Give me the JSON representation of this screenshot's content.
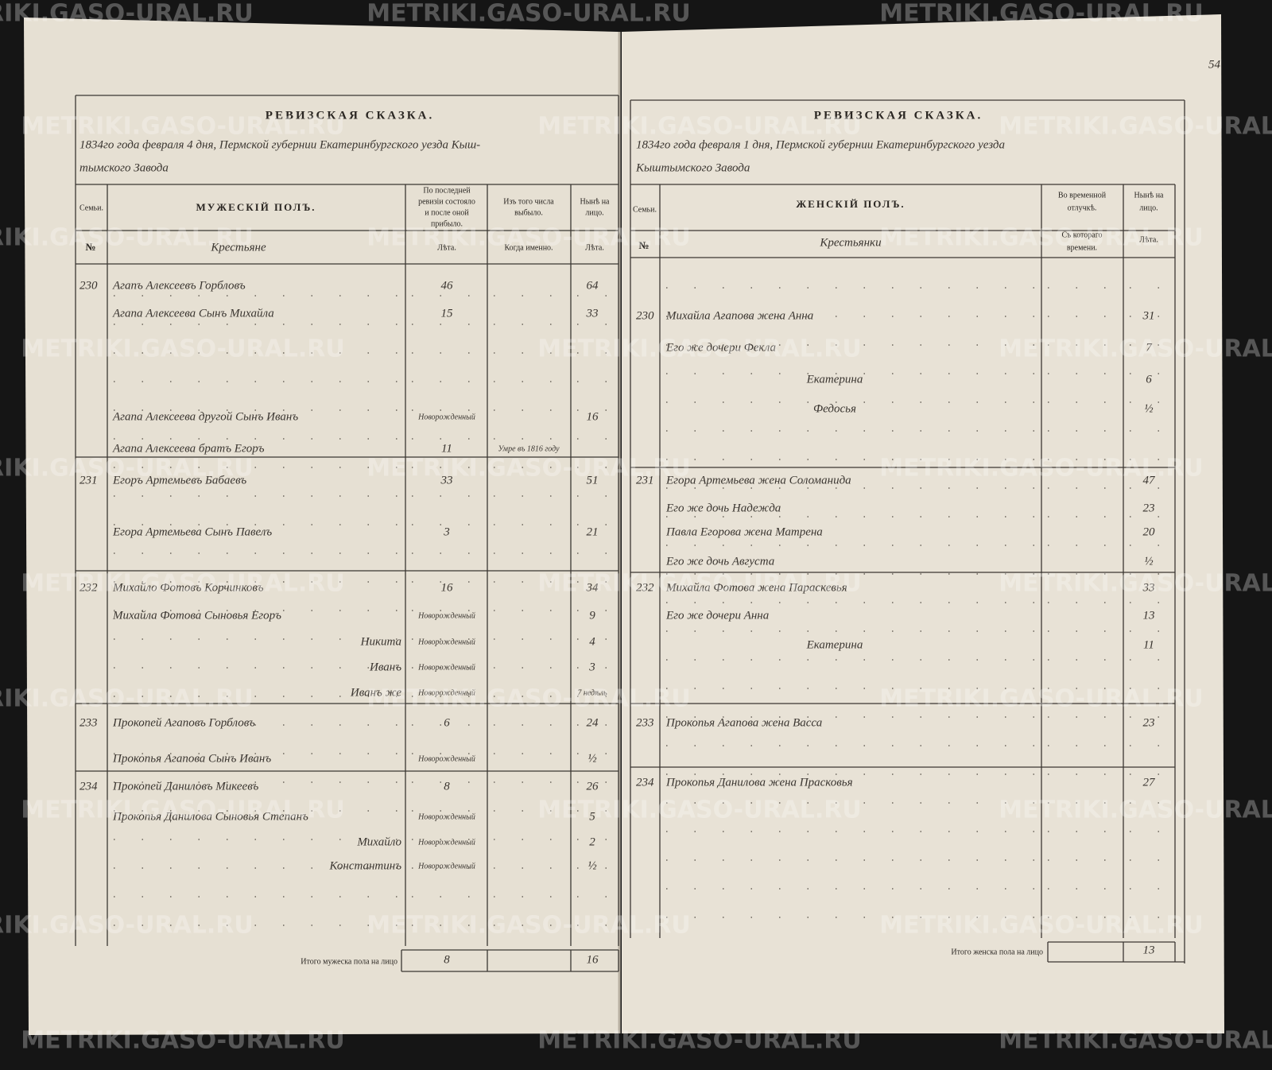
{
  "watermark": "METRIKI.GASO-URAL.RU",
  "page_number": "54",
  "left_page": {
    "title": "РЕВИЗСКАЯ СКАЗКА.",
    "header_lines": [
      "1834го года февраля 4 дня, Пермской губернии Екатеринбургского уезда Кыш-",
      "тымского Завода"
    ],
    "columns": {
      "family": [
        "Семьи."
      ],
      "name": [
        "МУЖЕСКІЙ ПОЛЪ."
      ],
      "previous": [
        "По последней",
        "ревизіи состояло",
        "и после оной",
        "прибыло."
      ],
      "departed": [
        "Изъ того числа",
        "выбыло."
      ],
      "present": [
        "Нынѣ на",
        "лицо."
      ]
    },
    "subheaders": {
      "number": [
        "№"
      ],
      "estate": [
        "Крестьяне"
      ],
      "previous": [
        "Лѣта."
      ],
      "departed": [
        "Когда именно."
      ],
      "present": [
        "Лѣта."
      ]
    },
    "rows": [
      {
        "family": "230",
        "name": "Агапъ Алексеевъ Горбловъ",
        "previous": "46",
        "present": "64"
      },
      {
        "name": "Агапа Алексеева Сынъ Михайла",
        "previous": "15",
        "present": "33"
      },
      {
        "name": "Агапа Алексеева другой Сынъ Иванъ",
        "previous": "Новорожденный",
        "present": "16"
      },
      {
        "name": "Агапа Алексеева братъ Егоръ",
        "previous": "11",
        "departed": "Умре въ 1816 году"
      },
      {
        "family": "231",
        "name": "Егоръ Артемьевъ Бабаевъ",
        "previous": "33",
        "present": "51"
      },
      {
        "name": "Егора Артемьева Сынъ Павелъ",
        "previous": "3",
        "present": "21"
      },
      {
        "family": "232",
        "name": "Михайло Фотовъ Корчинковъ",
        "previous": "16",
        "present": "34"
      },
      {
        "name": "Михайла Фотова Сыновья Егоръ",
        "previous": "Новорожденный",
        "present": "9"
      },
      {
        "name": "Никита",
        "previous": "Новорожденный",
        "present": "4"
      },
      {
        "name": "Иванъ",
        "previous": "Новорожденный",
        "present": "3"
      },
      {
        "name": "Иванъ же",
        "previous": "Новорожденный",
        "present": "7 недѣль"
      },
      {
        "family": "233",
        "name": "Прокопей Агаповъ Горбловъ",
        "previous": "6",
        "present": "24"
      },
      {
        "name": "Прокопья Агапова Сынъ Иванъ",
        "previous": "Новорожденный",
        "present": "½"
      },
      {
        "family": "234",
        "name": "Прокопей Даниловъ Микеевъ",
        "previous": "8",
        "present": "26"
      },
      {
        "name": "Прокопья Данилова Сыновья Степанъ",
        "previous": "Новорожденный",
        "present": "5"
      },
      {
        "name": "Михайло",
        "previous": "Новорожденный",
        "present": "2"
      },
      {
        "name": "Константинъ",
        "previous": "Новорожденный",
        "present": "½"
      }
    ],
    "total_label": "Итого мужеска пола на лицо",
    "total_previous": "8",
    "total_present": "16"
  },
  "right_page": {
    "title": "РЕВИЗСКАЯ СКАЗКА.",
    "header_lines": [
      "1834го года февраля 1 дня, Пермской губернии Екатеринбургского уезда",
      "Кыштымского Завода"
    ],
    "columns": {
      "family": [
        "Семьи."
      ],
      "name": [
        "ЖЕНСКІЙ ПОЛЪ."
      ],
      "absent": [
        "Во временной",
        "отлучкѣ."
      ],
      "present": [
        "Нынѣ на",
        "лицо."
      ]
    },
    "subheaders": {
      "number": [
        "№"
      ],
      "estate": [
        "Крестьянки"
      ],
      "absent": [
        "Съ котораго",
        "времени."
      ],
      "present": [
        "Лѣта."
      ]
    },
    "rows": [
      {
        "family": "230",
        "name": "Михайла Агапова жена Анна",
        "present": "31"
      },
      {
        "name": "Его же дочери Фекла",
        "present": "7"
      },
      {
        "name": "Екатерина",
        "present": "6"
      },
      {
        "name": "Федосья",
        "present": "½"
      },
      {
        "family": "231",
        "name": "Егора Артемьева жена Соломанида",
        "present": "47"
      },
      {
        "name": "Его же дочь Надежда",
        "present": "23"
      },
      {
        "name": "Павла Егорова жена Матрена",
        "present": "20"
      },
      {
        "name": "Его же дочь Августа",
        "present": "½"
      },
      {
        "family": "232",
        "name": "Михайла Фотова жена Параскевья",
        "present": "33"
      },
      {
        "name": "Его же дочери Анна",
        "present": "13"
      },
      {
        "name": "Екатерина",
        "present": "11"
      },
      {
        "family": "233",
        "name": "Прокопья Агапова жена Васса",
        "present": "23"
      },
      {
        "family": "234",
        "name": "Прокопья Данилова жена Прасковья",
        "present": "27"
      }
    ],
    "total_label": "Итого женска пола на лицо",
    "total_present": "13"
  }
}
